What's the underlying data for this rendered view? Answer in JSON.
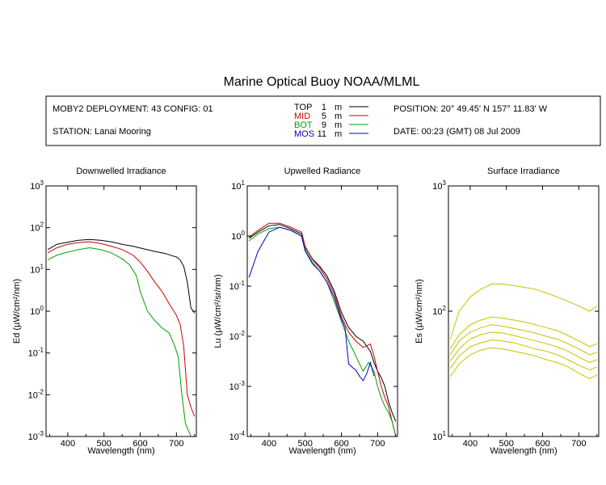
{
  "title": "Marine Optical Buoy NOAA/MLML",
  "info": {
    "deployment": "MOBY2 DEPLOYMENT: 43 CONFIG: 01",
    "station": "STATION: Lanai Mooring",
    "position": "POSITION: 20° 49.45' N   157° 11.83' W",
    "date": "DATE: 00:23 (GMT) 08 Jul 2009"
  },
  "legend": [
    {
      "name": "TOP",
      "depth": "1",
      "unit": "m",
      "color": "#000000"
    },
    {
      "name": "MID",
      "depth": "5",
      "unit": "m",
      "color": "#cc0000"
    },
    {
      "name": "BOT",
      "depth": "9",
      "unit": "m",
      "color": "#00a000"
    },
    {
      "name": "MOS",
      "depth": "11",
      "unit": "m",
      "color": "#0000cc"
    }
  ],
  "colors": {
    "top": "#000000",
    "mid": "#cc0000",
    "bot": "#00a000",
    "mos": "#0000cc",
    "surface": "#c8c000"
  },
  "chart_data": [
    {
      "type": "line",
      "title": "Downwelled Irradiance",
      "xlabel": "Wavelength (nm)",
      "ylabel": "Ed  (µW/cm²/nm)",
      "yscale": "log",
      "xlim": [
        340,
        755
      ],
      "ylim": [
        0.001,
        1000
      ],
      "xticks": [
        400,
        500,
        600,
        700
      ],
      "yticks": [
        0.001,
        0.01,
        0.1,
        1,
        10,
        100,
        1000
      ],
      "ytick_labels": [
        {
          "base": "10",
          "exp": "-3"
        },
        {
          "base": "10",
          "exp": "-2"
        },
        {
          "base": "10",
          "exp": "-1"
        },
        {
          "base": "10",
          "exp": "0"
        },
        {
          "base": "10",
          "exp": "1"
        },
        {
          "base": "10",
          "exp": "2"
        },
        {
          "base": "10",
          "exp": "3"
        }
      ],
      "series": [
        {
          "name": "TOP",
          "x": [
            345,
            370,
            400,
            430,
            460,
            490,
            520,
            550,
            580,
            610,
            640,
            670,
            690,
            700,
            710,
            720,
            730,
            740,
            750
          ],
          "y": [
            30,
            40,
            45,
            50,
            52,
            50,
            46,
            40,
            36,
            31,
            27,
            24,
            21,
            20,
            17,
            12,
            5,
            1.2,
            0.9
          ]
        },
        {
          "name": "MID",
          "x": [
            345,
            370,
            400,
            430,
            460,
            490,
            520,
            550,
            580,
            600,
            620,
            640,
            660,
            680,
            700,
            710,
            720,
            730,
            740,
            750
          ],
          "y": [
            25,
            33,
            40,
            44,
            46,
            42,
            36,
            30,
            22,
            15,
            9,
            5,
            3,
            1.5,
            0.8,
            0.5,
            0.15,
            0.01,
            0.005,
            0.003
          ]
        },
        {
          "name": "BOT",
          "x": [
            345,
            370,
            400,
            430,
            460,
            490,
            520,
            550,
            570,
            590,
            600,
            620,
            640,
            660,
            680,
            695,
            705,
            715,
            725,
            740,
            750
          ],
          "y": [
            17,
            22,
            26,
            30,
            33,
            30,
            25,
            18,
            13,
            7,
            3,
            1,
            0.6,
            0.4,
            0.3,
            0.15,
            0.08,
            0.01,
            0.002,
            0.001,
            0.001
          ]
        }
      ]
    },
    {
      "type": "line",
      "title": "Upwelled Radiance",
      "xlabel": "Wavelength (nm)",
      "ylabel": "Lu  (µW/cm²/sr/nm)",
      "yscale": "log",
      "xlim": [
        340,
        755
      ],
      "ylim": [
        0.0001,
        10
      ],
      "xticks": [
        400,
        500,
        600,
        700
      ],
      "yticks": [
        0.0001,
        0.001,
        0.01,
        0.1,
        1,
        10
      ],
      "ytick_labels": [
        {
          "base": "10",
          "exp": "-4"
        },
        {
          "base": "10",
          "exp": "-3"
        },
        {
          "base": "10",
          "exp": "-2"
        },
        {
          "base": "10",
          "exp": "-1"
        },
        {
          "base": "10",
          "exp": "0"
        },
        {
          "base": "10",
          "exp": "1"
        }
      ],
      "series": [
        {
          "name": "TOP",
          "x": [
            345,
            370,
            400,
            430,
            460,
            490,
            500,
            520,
            540,
            560,
            580,
            600,
            620,
            640,
            660,
            680,
            690,
            700,
            710,
            720,
            730,
            740,
            750
          ],
          "y": [
            0.9,
            1.2,
            1.6,
            1.7,
            1.4,
            1.1,
            0.6,
            0.35,
            0.25,
            0.16,
            0.08,
            0.03,
            0.015,
            0.01,
            0.008,
            0.005,
            0.003,
            0.002,
            0.0015,
            0.001,
            0.0005,
            0.0003,
            0.0002
          ]
        },
        {
          "name": "MID",
          "x": [
            345,
            370,
            400,
            430,
            460,
            490,
            500,
            520,
            540,
            560,
            580,
            600,
            620,
            640,
            660,
            680,
            690,
            700,
            710,
            720,
            730,
            740,
            750
          ],
          "y": [
            0.95,
            1.3,
            1.8,
            1.8,
            1.5,
            1.2,
            0.62,
            0.34,
            0.23,
            0.14,
            0.07,
            0.025,
            0.012,
            0.008,
            0.006,
            0.007,
            0.004,
            0.002,
            0.001,
            0.0006,
            0.0004,
            0.0002,
            0.0001
          ]
        },
        {
          "name": "BOT",
          "x": [
            345,
            370,
            400,
            430,
            460,
            490,
            500,
            520,
            540,
            560,
            580,
            600,
            620,
            640,
            660,
            675,
            690,
            700,
            710,
            720,
            730,
            740,
            750
          ],
          "y": [
            0.8,
            1.1,
            1.4,
            1.5,
            1.3,
            1.0,
            0.55,
            0.3,
            0.2,
            0.12,
            0.05,
            0.02,
            0.008,
            0.004,
            0.002,
            0.003,
            0.002,
            0.001,
            0.0006,
            0.0004,
            0.0003,
            0.0002,
            0.0001
          ]
        },
        {
          "name": "MOS",
          "x": [
            345,
            370,
            400,
            430,
            460,
            490,
            500,
            520,
            540,
            560,
            580,
            600,
            610,
            620,
            630,
            640,
            650,
            660,
            670,
            680,
            690
          ],
          "y": [
            0.15,
            0.5,
            1.2,
            1.5,
            1.3,
            1.0,
            0.5,
            0.28,
            0.2,
            0.12,
            0.06,
            0.022,
            0.015,
            0.0028,
            0.0024,
            0.0021,
            0.0016,
            0.0013,
            0.0018,
            0.003,
            0.0016
          ]
        }
      ]
    },
    {
      "type": "line",
      "title": "Surface Irradiance",
      "xlabel": "Wavelength (nm)",
      "ylabel": "Es  (µW/cm²/nm)",
      "yscale": "log",
      "xlim": [
        340,
        755
      ],
      "ylim": [
        10,
        1000
      ],
      "xticks": [
        400,
        500,
        600,
        700
      ],
      "yticks": [
        10,
        100,
        1000
      ],
      "ytick_labels": [
        {
          "base": "10",
          "exp": "1"
        },
        {
          "base": "10",
          "exp": "2"
        },
        {
          "base": "10",
          "exp": "3"
        }
      ],
      "series": [
        {
          "x": [
            345,
            370,
            400,
            430,
            460,
            490,
            520,
            550,
            580,
            610,
            640,
            670,
            700,
            730,
            750
          ],
          "y": [
            60,
            100,
            130,
            150,
            165,
            165,
            160,
            155,
            150,
            140,
            130,
            120,
            110,
            100,
            110
          ]
        },
        {
          "x": [
            345,
            370,
            400,
            430,
            460,
            490,
            520,
            550,
            580,
            610,
            640,
            670,
            700,
            730,
            750
          ],
          "y": [
            50,
            65,
            78,
            85,
            90,
            88,
            85,
            82,
            78,
            74,
            70,
            64,
            58,
            52,
            55
          ]
        },
        {
          "x": [
            345,
            370,
            400,
            430,
            460,
            490,
            520,
            550,
            580,
            610,
            640,
            670,
            700,
            730,
            750
          ],
          "y": [
            45,
            58,
            68,
            74,
            78,
            76,
            73,
            70,
            67,
            63,
            60,
            55,
            50,
            45,
            47
          ]
        },
        {
          "x": [
            345,
            370,
            400,
            430,
            460,
            490,
            520,
            550,
            580,
            610,
            640,
            670,
            700,
            730,
            750
          ],
          "y": [
            40,
            50,
            60,
            65,
            68,
            67,
            64,
            61,
            58,
            55,
            52,
            48,
            43,
            39,
            41
          ]
        },
        {
          "x": [
            345,
            370,
            400,
            430,
            460,
            490,
            520,
            550,
            580,
            610,
            640,
            670,
            700,
            730,
            750
          ],
          "y": [
            35,
            44,
            52,
            56,
            59,
            58,
            56,
            53,
            50,
            48,
            45,
            41,
            37,
            34,
            36
          ]
        },
        {
          "x": [
            345,
            370,
            400,
            430,
            460,
            490,
            520,
            550,
            580,
            610,
            640,
            670,
            700,
            730,
            750
          ],
          "y": [
            30,
            38,
            45,
            49,
            51,
            50,
            48,
            46,
            44,
            41,
            39,
            36,
            32,
            29,
            31
          ]
        }
      ]
    }
  ]
}
